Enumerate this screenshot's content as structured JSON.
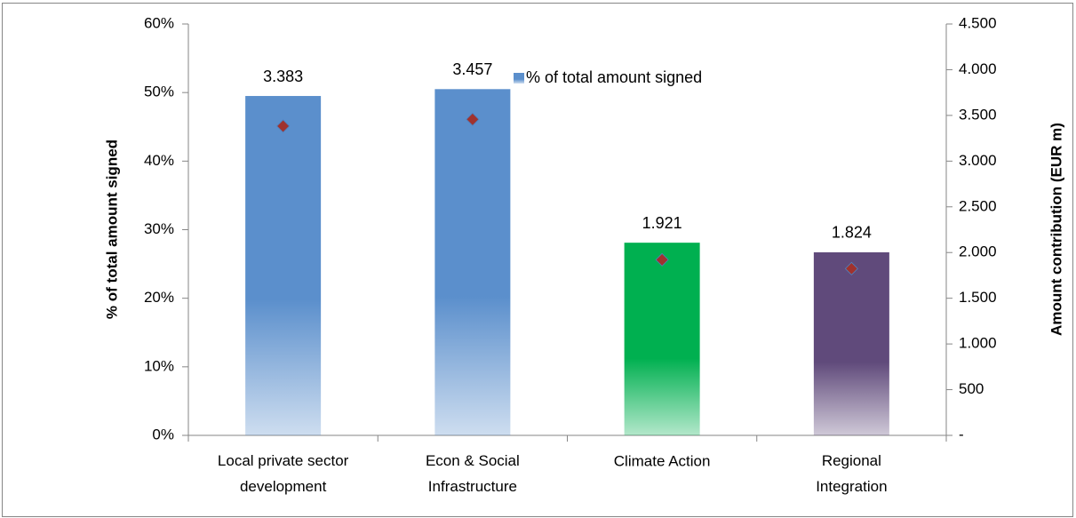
{
  "chart_data": {
    "type": "bar",
    "categories": [
      "Local private sector development",
      "Econ & Social Infrastructure",
      "Climate Action",
      "Regional Integration"
    ],
    "series": [
      {
        "name": "% of total amount signed",
        "colors": [
          "#5b8fcc",
          "#5b8fcc",
          "#00b050",
          "#604a7b"
        ],
        "color": "#5b8fcc",
        "values": [
          49.5,
          50.5,
          28.1,
          26.7
        ]
      },
      {
        "color": "#a0322e",
        "axis": "y2",
        "marker": "diamond",
        "values": [
          3383,
          3457,
          1921,
          1824
        ],
        "value_labels": [
          "3.383",
          "3.457",
          "1.921",
          "1.824"
        ]
      }
    ],
    "ylabel": "% of total amount signed",
    "y2label": "Amount contribution (EUR m)",
    "ylim": [
      0,
      60
    ],
    "yticks": [
      {
        "value": 0,
        "label": "0%"
      },
      {
        "value": 10,
        "label": "10%"
      },
      {
        "value": 20,
        "label": "20%"
      },
      {
        "value": 30,
        "label": "30%"
      },
      {
        "value": 40,
        "label": "40%"
      },
      {
        "value": 50,
        "label": "50%"
      },
      {
        "value": 60,
        "label": "60%"
      }
    ],
    "y2lim": [
      0,
      4500
    ],
    "y2ticks": [
      {
        "value": 0,
        "label": "-"
      },
      500,
      {
        "value": 1000,
        "label": "1.000"
      },
      {
        "value": 1500,
        "label": "1.500"
      },
      {
        "value": 2000,
        "label": "2.000"
      },
      {
        "value": 2500,
        "label": "2.500"
      },
      {
        "value": 3000,
        "label": "3.000"
      },
      {
        "value": 3500,
        "label": "3.500"
      },
      {
        "value": 4000,
        "label": "4.000"
      },
      {
        "value": 4500,
        "label": "4.500"
      }
    ],
    "legend": "top-right",
    "grid": false
  }
}
